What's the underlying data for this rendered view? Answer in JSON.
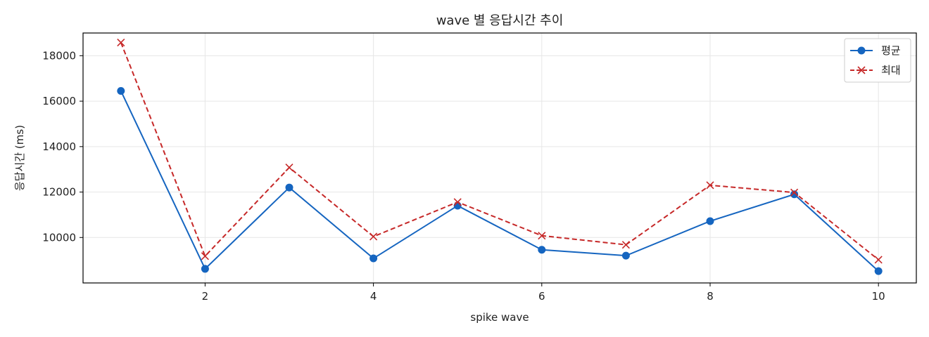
{
  "chart_data": {
    "type": "line",
    "title": "wave 별 응답시간 추이",
    "xlabel": "spike wave",
    "ylabel": "응답시간 (ms)",
    "x": [
      1,
      2,
      3,
      4,
      5,
      6,
      7,
      8,
      9,
      10
    ],
    "xlim": [
      0.55,
      10.45
    ],
    "ylim": [
      8000,
      19000
    ],
    "xticks": [
      2,
      4,
      6,
      8,
      10
    ],
    "yticks": [
      10000,
      12000,
      14000,
      16000,
      18000
    ],
    "grid": true,
    "legend_position": "top-right",
    "series": [
      {
        "name": "평균",
        "values": [
          16450,
          8620,
          12200,
          9080,
          11400,
          9460,
          9200,
          10720,
          11900,
          8520
        ],
        "color": "#1565c0",
        "marker": "circle",
        "line_style": "solid"
      },
      {
        "name": "최대",
        "values": [
          18580,
          9180,
          13080,
          10040,
          11560,
          10080,
          9680,
          12300,
          11980,
          9020
        ],
        "color": "#c62828",
        "marker": "x",
        "line_style": "dashed"
      }
    ]
  }
}
